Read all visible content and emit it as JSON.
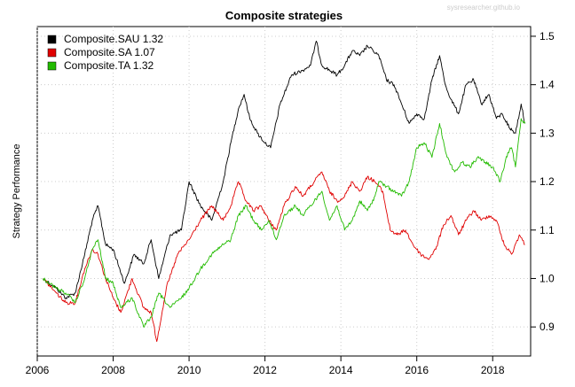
{
  "watermark": "sysresearcher.github.io",
  "chart_data": {
    "type": "line",
    "title": "Composite strategies",
    "xlabel": "",
    "ylabel": "Strategy Performance",
    "xlim": [
      2006.0,
      2019.0
    ],
    "ylim": [
      0.84,
      1.52
    ],
    "x_ticks": [
      2006,
      2008,
      2010,
      2012,
      2014,
      2016,
      2018
    ],
    "x_tick_labels": [
      "2006",
      "2008",
      "2010",
      "2012",
      "2014",
      "2016",
      "2018"
    ],
    "y_ticks": [
      0.9,
      1.0,
      1.1,
      1.2,
      1.3,
      1.4,
      1.5
    ],
    "y_tick_labels": [
      "0.9",
      "1.0",
      "1.1",
      "1.2",
      "1.3",
      "1.4",
      "1.5"
    ],
    "y_axis_side": "right",
    "grid": true,
    "legend_position": "top-left",
    "series": [
      {
        "name": "Composite.SAU 1.32",
        "color": "#000000",
        "x": [
          2006.15,
          2006.5,
          2006.75,
          2007.0,
          2007.25,
          2007.45,
          2007.6,
          2007.8,
          2008.0,
          2008.3,
          2008.55,
          2008.8,
          2009.0,
          2009.2,
          2009.5,
          2009.8,
          2010.0,
          2010.3,
          2010.6,
          2010.9,
          2011.1,
          2011.3,
          2011.45,
          2011.6,
          2011.8,
          2012.0,
          2012.15,
          2012.4,
          2012.7,
          2013.0,
          2013.2,
          2013.35,
          2013.5,
          2013.7,
          2013.9,
          2014.1,
          2014.3,
          2014.5,
          2014.7,
          2014.85,
          2015.0,
          2015.2,
          2015.4,
          2015.6,
          2015.8,
          2016.0,
          2016.2,
          2016.4,
          2016.6,
          2016.75,
          2016.9,
          2017.1,
          2017.3,
          2017.5,
          2017.7,
          2017.9,
          2018.1,
          2018.25,
          2018.45,
          2018.6,
          2018.75,
          2018.85
        ],
        "y": [
          1.0,
          0.98,
          0.96,
          0.97,
          1.05,
          1.12,
          1.15,
          1.07,
          1.06,
          0.99,
          1.05,
          1.03,
          1.08,
          1.0,
          1.09,
          1.1,
          1.2,
          1.15,
          1.12,
          1.2,
          1.28,
          1.35,
          1.38,
          1.33,
          1.3,
          1.28,
          1.27,
          1.36,
          1.42,
          1.43,
          1.44,
          1.49,
          1.44,
          1.43,
          1.42,
          1.44,
          1.47,
          1.46,
          1.48,
          1.47,
          1.46,
          1.41,
          1.4,
          1.36,
          1.32,
          1.34,
          1.33,
          1.41,
          1.46,
          1.4,
          1.37,
          1.34,
          1.4,
          1.41,
          1.36,
          1.38,
          1.33,
          1.34,
          1.31,
          1.3,
          1.36,
          1.32
        ]
      },
      {
        "name": "Composite.SA 1.07",
        "color": "#e00000",
        "x": [
          2006.15,
          2006.5,
          2006.75,
          2007.0,
          2007.25,
          2007.45,
          2007.6,
          2007.8,
          2008.0,
          2008.2,
          2008.5,
          2008.8,
          2009.0,
          2009.15,
          2009.4,
          2009.7,
          2010.0,
          2010.3,
          2010.6,
          2010.9,
          2011.1,
          2011.3,
          2011.5,
          2011.7,
          2011.9,
          2012.1,
          2012.3,
          2012.5,
          2012.8,
          2013.0,
          2013.3,
          2013.5,
          2013.7,
          2013.9,
          2014.1,
          2014.3,
          2014.5,
          2014.7,
          2014.9,
          2015.1,
          2015.3,
          2015.5,
          2015.7,
          2015.9,
          2016.1,
          2016.3,
          2016.5,
          2016.7,
          2016.9,
          2017.1,
          2017.3,
          2017.5,
          2017.7,
          2017.9,
          2018.1,
          2018.3,
          2018.5,
          2018.7,
          2018.85
        ],
        "y": [
          1.0,
          0.97,
          0.95,
          0.95,
          1.02,
          1.06,
          1.05,
          1.0,
          0.96,
          0.93,
          1.0,
          0.94,
          0.93,
          0.87,
          0.98,
          1.05,
          1.08,
          1.12,
          1.15,
          1.12,
          1.15,
          1.2,
          1.16,
          1.14,
          1.15,
          1.12,
          1.1,
          1.15,
          1.19,
          1.17,
          1.2,
          1.22,
          1.18,
          1.16,
          1.17,
          1.2,
          1.18,
          1.21,
          1.2,
          1.18,
          1.1,
          1.09,
          1.1,
          1.07,
          1.05,
          1.04,
          1.06,
          1.11,
          1.13,
          1.09,
          1.12,
          1.14,
          1.12,
          1.13,
          1.12,
          1.07,
          1.05,
          1.09,
          1.07
        ]
      },
      {
        "name": "Composite.TA 1.32",
        "color": "#22bb00",
        "x": [
          2006.15,
          2006.5,
          2006.75,
          2007.0,
          2007.25,
          2007.45,
          2007.6,
          2007.8,
          2008.0,
          2008.2,
          2008.5,
          2008.8,
          2009.0,
          2009.2,
          2009.5,
          2009.8,
          2010.0,
          2010.3,
          2010.6,
          2010.9,
          2011.1,
          2011.3,
          2011.5,
          2011.7,
          2011.9,
          2012.1,
          2012.3,
          2012.5,
          2012.8,
          2013.0,
          2013.3,
          2013.5,
          2013.7,
          2013.9,
          2014.1,
          2014.3,
          2014.5,
          2014.7,
          2014.9,
          2015.0,
          2015.2,
          2015.4,
          2015.6,
          2015.8,
          2016.0,
          2016.2,
          2016.4,
          2016.6,
          2016.8,
          2017.0,
          2017.2,
          2017.4,
          2017.6,
          2017.8,
          2018.0,
          2018.2,
          2018.4,
          2018.5,
          2018.6,
          2018.75,
          2018.85
        ],
        "y": [
          1.0,
          0.98,
          0.97,
          0.95,
          1.0,
          1.06,
          1.08,
          1.0,
          0.99,
          0.94,
          0.96,
          0.9,
          0.92,
          0.97,
          0.94,
          0.96,
          0.98,
          1.02,
          1.05,
          1.07,
          1.08,
          1.13,
          1.15,
          1.12,
          1.1,
          1.12,
          1.08,
          1.13,
          1.15,
          1.13,
          1.16,
          1.18,
          1.12,
          1.15,
          1.1,
          1.12,
          1.16,
          1.14,
          1.17,
          1.2,
          1.19,
          1.18,
          1.17,
          1.2,
          1.27,
          1.28,
          1.25,
          1.32,
          1.25,
          1.22,
          1.24,
          1.23,
          1.25,
          1.24,
          1.23,
          1.2,
          1.26,
          1.27,
          1.23,
          1.33,
          1.32
        ]
      }
    ]
  }
}
